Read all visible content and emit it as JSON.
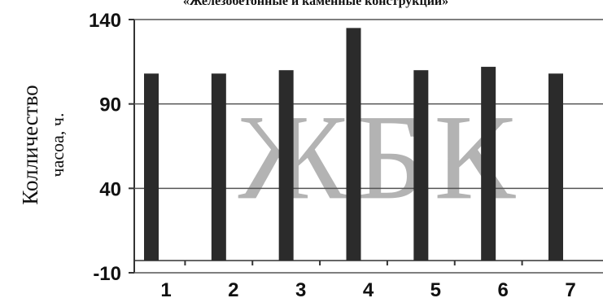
{
  "chart_data": {
    "type": "bar",
    "title": "«Железобетонные и каменные конструкции»",
    "ylabel_line1": "Колличество",
    "ylabel_line2": "часоа, ч.",
    "watermark": "ЖБК",
    "categories": [
      "1",
      "2",
      "3",
      "4",
      "5",
      "6",
      "7"
    ],
    "values": [
      108,
      108,
      110,
      135,
      110,
      112,
      108
    ],
    "y_ticks": [
      -10,
      40,
      90,
      140
    ],
    "ylim": [
      -10,
      140
    ],
    "grid": true,
    "bar_color": "#2b2b2b",
    "watermark_color": "#9a9a9a"
  }
}
